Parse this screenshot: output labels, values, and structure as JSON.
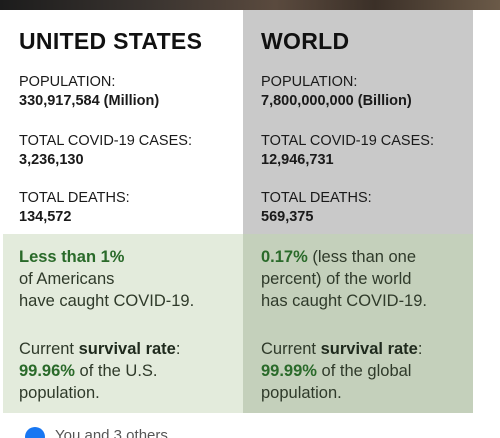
{
  "us": {
    "heading": "UNITED STATES",
    "population_label": "POPULATION:",
    "population_value": "330,917,584 (Million)",
    "cases_label": "TOTAL COVID-19 CASES:",
    "cases_value": "3,236,130",
    "deaths_label": "TOTAL DEATHS:",
    "deaths_value": "134,572",
    "caught": [
      "Less than 1%",
      "of Americans",
      "have caught COVID-19."
    ],
    "survival_prefix": "Current ",
    "survival_bold": "survival rate",
    "survival_suffix": ":",
    "survival_pct": "99.96%",
    "survival_line2_rest": " of the U.S.",
    "survival_line3": "population."
  },
  "world": {
    "heading": "WORLD",
    "population_label": "POPULATION:",
    "population_value": "7,800,000,000 (Billion)",
    "cases_label": "TOTAL COVID-19 CASES:",
    "cases_value": "12,946,731",
    "deaths_label": "TOTAL DEATHS:",
    "deaths_value": "569,375",
    "caught_pct": "0.17%",
    "caught_line1_rest": " (less than one",
    "caught_line2": "percent) of the world",
    "caught_line3": "has caught COVID-19.",
    "survival_prefix": "Current ",
    "survival_bold": "survival rate",
    "survival_suffix": ":",
    "survival_pct": "99.99%",
    "survival_line2_rest": " of the global",
    "survival_line3": "population."
  },
  "footer": {
    "text": "You and 3 others"
  },
  "colors": {
    "world_top_bg": "#c9c9c9",
    "us_bottom_bg": "#e3ebdc",
    "world_bottom_bg": "#c4d0bb",
    "highlight_green": "#2a6a2a"
  }
}
